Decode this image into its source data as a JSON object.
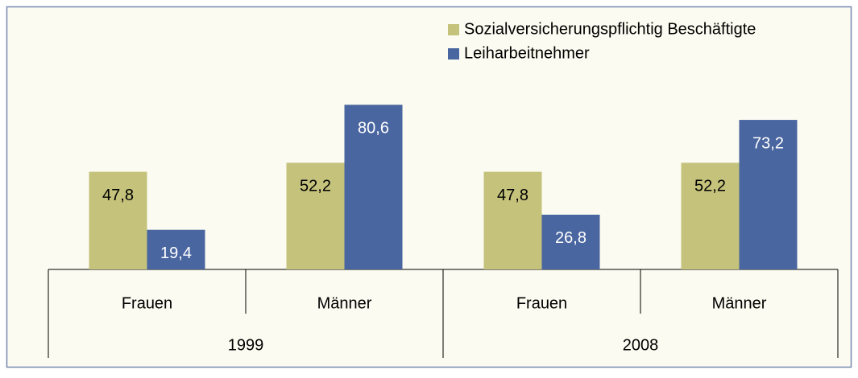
{
  "chart_data": {
    "type": "bar",
    "groups": [
      {
        "name": "1999",
        "categories": [
          "Frauen",
          "Männer"
        ]
      },
      {
        "name": "2008",
        "categories": [
          "Frauen",
          "Männer"
        ]
      }
    ],
    "series": [
      {
        "name": "Sozialversicherungspflichtig Beschäftigte",
        "color": "#c4c27b",
        "values": [
          47.8,
          52.2,
          47.8,
          52.2
        ],
        "value_labels": [
          "47,8",
          "52,2",
          "47,8",
          "52,2"
        ]
      },
      {
        "name": "Leiharbeitnehmer",
        "color": "#4a66a0",
        "values": [
          19.4,
          80.6,
          26.8,
          73.2
        ],
        "value_labels": [
          "19,4",
          "80,6",
          "26,8",
          "73,2"
        ]
      }
    ],
    "legend": "top-right"
  }
}
